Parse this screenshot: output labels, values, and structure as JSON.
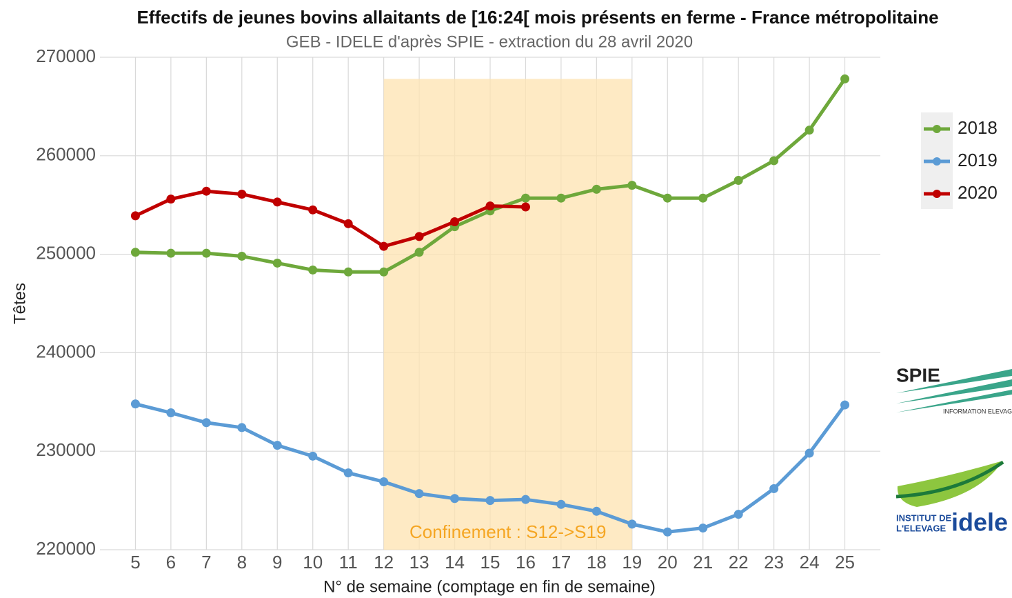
{
  "chart_data": {
    "type": "line",
    "title": "Effectifs de jeunes bovins allaitants de [16:24[ mois présents en ferme - France métropolitaine",
    "subtitle": "GEB - IDELE d'après SPIE - extraction du 28 avril 2020",
    "x_label": "N° de semaine (comptage en fin de semaine)",
    "y_label": "Têtes",
    "x": [
      5,
      6,
      7,
      8,
      9,
      10,
      11,
      12,
      13,
      14,
      15,
      16,
      17,
      18,
      19,
      20,
      21,
      22,
      23,
      24,
      25
    ],
    "xlim": [
      4,
      26
    ],
    "xticks": [
      5,
      6,
      7,
      8,
      9,
      10,
      11,
      12,
      13,
      14,
      15,
      16,
      17,
      18,
      19,
      20,
      21,
      22,
      23,
      24,
      25
    ],
    "ylim": [
      220000,
      270000
    ],
    "yticks": [
      220000,
      230000,
      240000,
      250000,
      260000,
      270000
    ],
    "grid": true,
    "legend": "right",
    "series": [
      {
        "name": "2018",
        "color": "#6ea83b",
        "values": [
          250200,
          250100,
          250100,
          249800,
          249100,
          248400,
          248200,
          248200,
          250200,
          252800,
          254400,
          255700,
          255700,
          256600,
          257000,
          255700,
          255700,
          257500,
          259500,
          262600,
          267800
        ]
      },
      {
        "name": "2019",
        "color": "#5b9bd5",
        "values": [
          234800,
          233900,
          232900,
          232400,
          230600,
          229500,
          227800,
          226900,
          225700,
          225200,
          225000,
          225100,
          224600,
          223900,
          222600,
          221800,
          222200,
          223600,
          226200,
          229800,
          234700
        ]
      },
      {
        "name": "2020",
        "color": "#c00000",
        "values": [
          253900,
          255600,
          256400,
          256100,
          255300,
          254500,
          253100,
          250800,
          251800,
          253300,
          254900,
          254800,
          null,
          null,
          null,
          null,
          null,
          null,
          null,
          null,
          null
        ]
      }
    ],
    "shaded_region": {
      "x": [
        12,
        19
      ],
      "ytop": 267800,
      "color": "#fde3b0",
      "label": "Confinement : S12->S19",
      "label_color": "#f5a623"
    },
    "logos": {
      "spie": "SPIE",
      "spie_text": "INFORMATION ELEVAGE",
      "institut": "INSTITUT DE",
      "elevage": "L'ELEVAGE",
      "idele": "idele"
    }
  }
}
